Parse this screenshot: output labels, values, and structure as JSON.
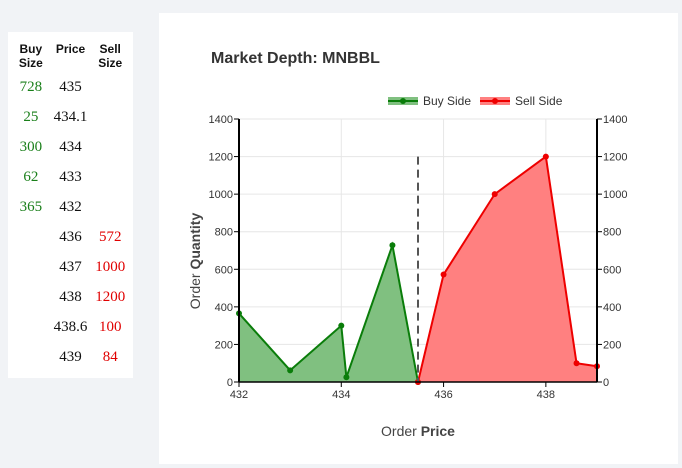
{
  "order_book": {
    "headers": {
      "buy_size": "Buy Size",
      "price": "Price",
      "sell_size": "Sell Size"
    },
    "rows": [
      {
        "buy": "728",
        "price": "435",
        "sell": ""
      },
      {
        "buy": "25",
        "price": "434.1",
        "sell": ""
      },
      {
        "buy": "300",
        "price": "434",
        "sell": ""
      },
      {
        "buy": "62",
        "price": "433",
        "sell": ""
      },
      {
        "buy": "365",
        "price": "432",
        "sell": ""
      },
      {
        "buy": "",
        "price": "436",
        "sell": "572"
      },
      {
        "buy": "",
        "price": "437",
        "sell": "1000"
      },
      {
        "buy": "",
        "price": "438",
        "sell": "1200"
      },
      {
        "buy": "",
        "price": "438.6",
        "sell": "100"
      },
      {
        "buy": "",
        "price": "439",
        "sell": "84"
      }
    ],
    "colors": {
      "buy": "#1a7f1a",
      "sell": "#e00000"
    }
  },
  "chart_data": {
    "type": "area",
    "title": "Market Depth: MNBBL",
    "xlabel_prefix": "Order",
    "xlabel_bold": "Price",
    "ylabel_prefix": "Order",
    "ylabel_bold": "Quantity",
    "xlim": [
      432,
      439
    ],
    "ylim": [
      0,
      1400
    ],
    "x_ticks": [
      432,
      434,
      436,
      438
    ],
    "y_ticks": [
      0,
      200,
      400,
      600,
      800,
      1000,
      1200,
      1400
    ],
    "mid_price": 435.5,
    "mid_line_top": 1200,
    "grid": true,
    "legend_position": "top-right",
    "series": [
      {
        "name": "Buy Side",
        "color": "#0a7d0a",
        "fill": "#80c080",
        "points": [
          [
            432,
            365
          ],
          [
            433,
            62
          ],
          [
            434,
            300
          ],
          [
            434.1,
            25
          ],
          [
            435,
            728
          ],
          [
            435.5,
            0
          ]
        ]
      },
      {
        "name": "Sell Side",
        "color": "#ee0000",
        "fill": "#ff8080",
        "points": [
          [
            435.5,
            0
          ],
          [
            436,
            572
          ],
          [
            437,
            1000
          ],
          [
            438,
            1200
          ],
          [
            438.6,
            100
          ],
          [
            439,
            84
          ]
        ]
      }
    ]
  }
}
